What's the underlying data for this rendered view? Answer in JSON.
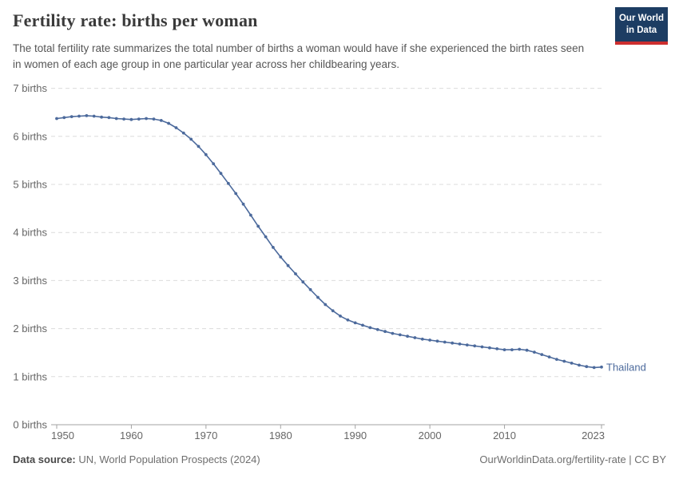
{
  "header": {
    "title": "Fertility rate: births per woman",
    "subtitle": "The total fertility rate summarizes the total number of births a woman would have if she experienced the birth rates seen in women of each age group in one particular year across her childbearing years.",
    "logo": {
      "line1": "Our World",
      "line2": "in Data",
      "bg_color": "#1d3d63",
      "bar_color": "#cd2f2f"
    }
  },
  "chart_data": {
    "type": "line",
    "title": "Fertility rate: births per woman",
    "xlabel": "",
    "ylabel": "",
    "entity": "Thailand",
    "line_color": "#4c6a9c",
    "xlim": [
      1950,
      2023
    ],
    "ylim": [
      0,
      7
    ],
    "grid": "horizontal-dashed",
    "legend_position": "end-of-line",
    "x_ticks": [
      {
        "value": 1950,
        "label": "1950"
      },
      {
        "value": 1960,
        "label": "1960"
      },
      {
        "value": 1970,
        "label": "1970"
      },
      {
        "value": 1980,
        "label": "1980"
      },
      {
        "value": 1990,
        "label": "1990"
      },
      {
        "value": 2000,
        "label": "2000"
      },
      {
        "value": 2010,
        "label": "2010"
      },
      {
        "value": 2023,
        "label": "2023"
      }
    ],
    "y_ticks": [
      {
        "value": 0,
        "label": "0 births"
      },
      {
        "value": 1,
        "label": "1 births"
      },
      {
        "value": 2,
        "label": "2 births"
      },
      {
        "value": 3,
        "label": "3 births"
      },
      {
        "value": 4,
        "label": "4 births"
      },
      {
        "value": 5,
        "label": "5 births"
      },
      {
        "value": 6,
        "label": "6 births"
      },
      {
        "value": 7,
        "label": "7 births"
      }
    ],
    "x": [
      1950,
      1951,
      1952,
      1953,
      1954,
      1955,
      1956,
      1957,
      1958,
      1959,
      1960,
      1961,
      1962,
      1963,
      1964,
      1965,
      1966,
      1967,
      1968,
      1969,
      1970,
      1971,
      1972,
      1973,
      1974,
      1975,
      1976,
      1977,
      1978,
      1979,
      1980,
      1981,
      1982,
      1983,
      1984,
      1985,
      1986,
      1987,
      1988,
      1989,
      1990,
      1991,
      1992,
      1993,
      1994,
      1995,
      1996,
      1997,
      1998,
      1999,
      2000,
      2001,
      2002,
      2003,
      2004,
      2005,
      2006,
      2007,
      2008,
      2009,
      2010,
      2011,
      2012,
      2013,
      2014,
      2015,
      2016,
      2017,
      2018,
      2019,
      2020,
      2021,
      2022,
      2023
    ],
    "series": [
      {
        "name": "Thailand",
        "color": "#4c6a9c",
        "values": [
          6.37,
          6.39,
          6.41,
          6.42,
          6.43,
          6.42,
          6.4,
          6.39,
          6.37,
          6.36,
          6.35,
          6.36,
          6.37,
          6.36,
          6.33,
          6.27,
          6.18,
          6.07,
          5.94,
          5.79,
          5.62,
          5.43,
          5.23,
          5.02,
          4.81,
          4.59,
          4.36,
          4.13,
          3.91,
          3.69,
          3.49,
          3.31,
          3.14,
          2.97,
          2.81,
          2.65,
          2.5,
          2.37,
          2.26,
          2.18,
          2.12,
          2.07,
          2.02,
          1.98,
          1.94,
          1.9,
          1.87,
          1.84,
          1.81,
          1.78,
          1.76,
          1.74,
          1.72,
          1.7,
          1.68,
          1.66,
          1.64,
          1.62,
          1.6,
          1.58,
          1.56,
          1.56,
          1.57,
          1.55,
          1.51,
          1.46,
          1.41,
          1.36,
          1.32,
          1.28,
          1.24,
          1.21,
          1.19,
          1.2
        ]
      }
    ]
  },
  "footer": {
    "source_label": "Data source:",
    "source_text": " UN, World Population Prospects (2024)",
    "link_text": "OurWorldinData.org/fertility-rate | CC BY"
  }
}
